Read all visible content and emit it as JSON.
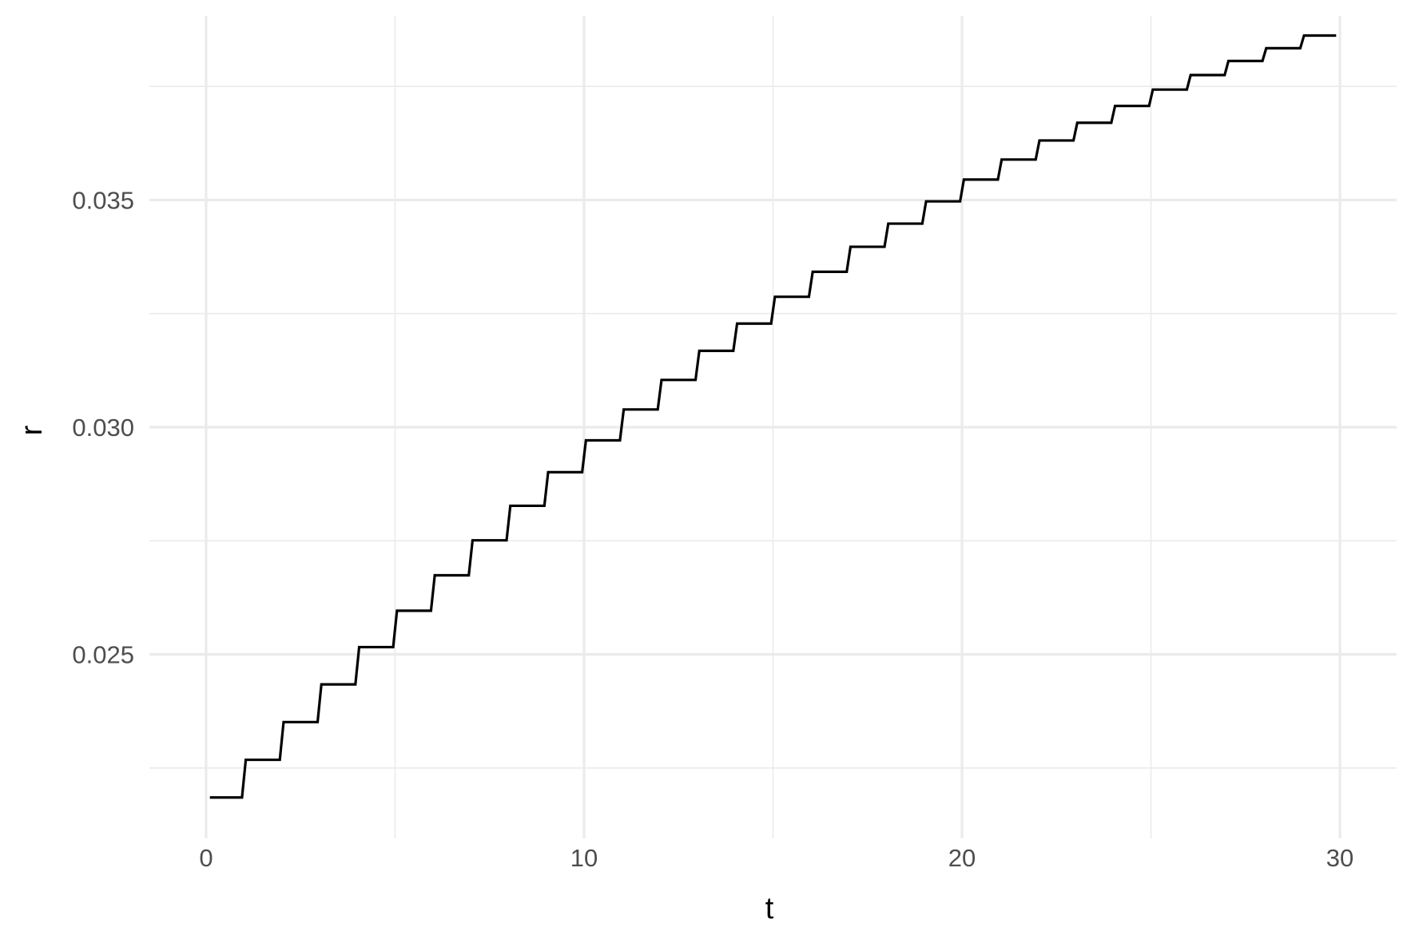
{
  "chart_data": {
    "type": "line",
    "title": "",
    "xlabel": "t",
    "ylabel": "r",
    "xlim": [
      -1.5,
      31.5
    ],
    "ylim": [
      0.02095,
      0.03905
    ],
    "x_ticks": [
      0,
      10,
      20,
      30
    ],
    "x_tick_labels": [
      "0",
      "10",
      "20",
      "30"
    ],
    "x_minor_ticks": [
      5,
      15,
      25
    ],
    "y_ticks": [
      0.025,
      0.03,
      0.035
    ],
    "y_tick_labels": [
      "0.025",
      "0.030",
      "0.035"
    ],
    "y_minor_ticks": [
      0.0225,
      0.0275,
      0.0325,
      0.0375
    ],
    "grid": true,
    "line_color": "#000000",
    "grid_color": "#ebebeb",
    "series": [
      {
        "x": [
          0.1,
          0.95,
          1.05,
          1.95,
          2.05,
          2.95,
          3.05,
          3.95,
          4.05,
          4.95,
          5.05,
          5.95,
          6.05,
          6.95,
          7.05,
          7.95,
          8.05,
          8.95,
          9.05,
          9.95,
          10.05,
          10.95,
          11.05,
          11.95,
          12.05,
          12.95,
          13.05,
          13.95,
          14.05,
          14.95,
          15.05,
          15.95,
          16.05,
          16.95,
          17.05,
          17.95,
          18.05,
          18.95,
          19.05,
          19.95,
          20.05,
          20.95,
          21.05,
          21.95,
          22.05,
          22.95,
          23.05,
          23.95,
          24.05,
          24.95,
          25.05,
          25.95,
          26.05,
          26.95,
          27.05,
          27.95,
          28.05,
          28.95,
          29.05,
          29.9
        ],
        "y": [
          0.02185,
          0.02185,
          0.02268,
          0.02268,
          0.02351,
          0.02351,
          0.02434,
          0.02434,
          0.02516,
          0.02516,
          0.02596,
          0.02596,
          0.02674,
          0.02674,
          0.02751,
          0.02751,
          0.02827,
          0.02827,
          0.02901,
          0.02901,
          0.02971,
          0.02971,
          0.03039,
          0.03039,
          0.03104,
          0.03104,
          0.03168,
          0.03168,
          0.03228,
          0.03228,
          0.03287,
          0.03287,
          0.03342,
          0.03342,
          0.03397,
          0.03397,
          0.03448,
          0.03448,
          0.03497,
          0.03497,
          0.03545,
          0.03545,
          0.03589,
          0.03589,
          0.03631,
          0.03631,
          0.0367,
          0.0367,
          0.03707,
          0.03707,
          0.03743,
          0.03743,
          0.03775,
          0.03775,
          0.03806,
          0.03806,
          0.03834,
          0.03834,
          0.03862,
          0.03862
        ]
      }
    ]
  }
}
